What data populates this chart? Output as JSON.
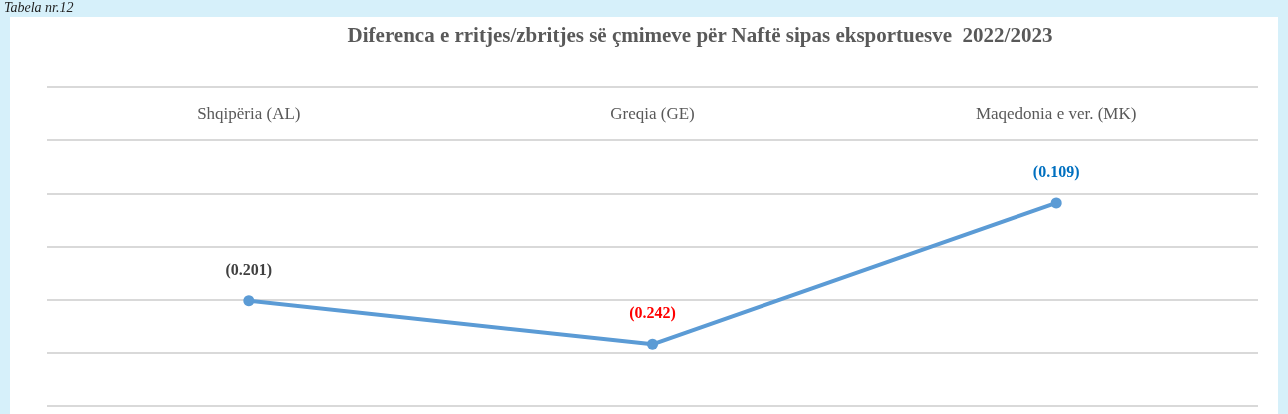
{
  "chart_data": {
    "type": "line",
    "title": "Diferenca e rritjes/zbritjes së çmimeve për Naftë sipas eksportuesve  2022/2023",
    "annotations": [
      "Tabela nr.12"
    ],
    "categories": [
      "Shqipëria (AL)",
      "Greqia (GE)",
      "Maqedonia e ver. (MK)"
    ],
    "series": [
      {
        "color": "#5b9bd5",
        "values": [
          -0.201,
          -0.242,
          -0.109
        ],
        "value_labels": [
          "(0.201)",
          "(0.242)",
          "(0.109)"
        ]
      }
    ],
    "ylim": [
      -0.3,
      0
    ],
    "yticks": [
      {
        "value": -0.3,
        "label": null
      },
      {
        "value": -0.25,
        "label": null
      },
      {
        "value": -0.2,
        "label": null
      },
      {
        "value": -0.15,
        "label": null
      },
      {
        "value": -0.1,
        "label": null
      },
      {
        "value": -0.05,
        "label": null
      },
      {
        "value": 0,
        "label": null
      }
    ],
    "tick_labels": "x",
    "grid": "y",
    "marker": "circle",
    "line_style": "solid"
  }
}
